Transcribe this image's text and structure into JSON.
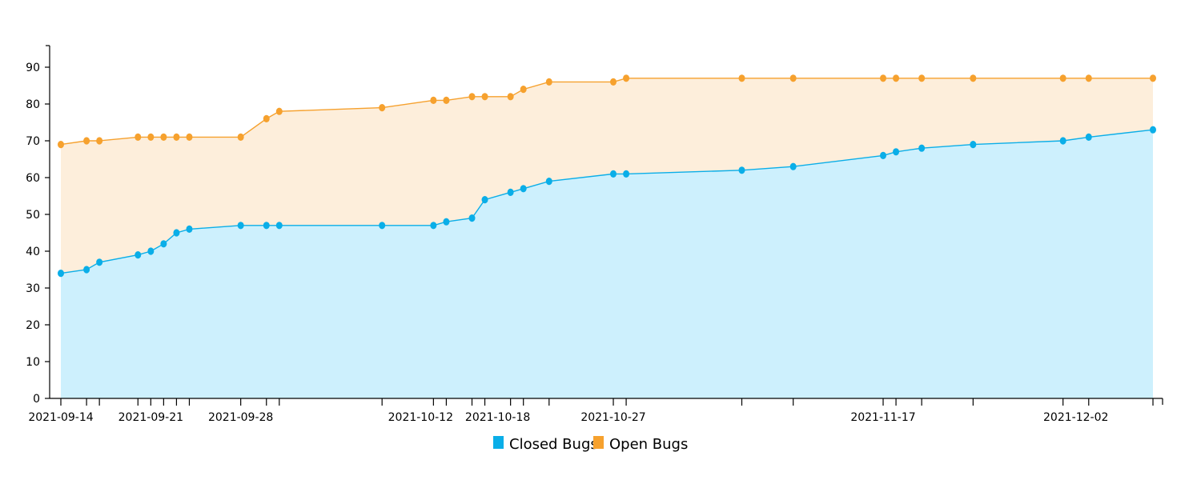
{
  "chart_data": {
    "type": "area",
    "dates": [
      "2021-09-14",
      "2021-09-16",
      "2021-09-17",
      "2021-09-20",
      "2021-09-21",
      "2021-09-22",
      "2021-09-23",
      "2021-09-24",
      "2021-09-28",
      "2021-09-30",
      "2021-10-01",
      "2021-10-09",
      "2021-10-13",
      "2021-10-14",
      "2021-10-16",
      "2021-10-17",
      "2021-10-19",
      "2021-10-20",
      "2021-10-22",
      "2021-10-27",
      "2021-10-28",
      "2021-11-06",
      "2021-11-10",
      "2021-11-17",
      "2021-11-18",
      "2021-11-20",
      "2021-11-24",
      "2021-12-01",
      "2021-12-03",
      "2021-12-08"
    ],
    "series": [
      {
        "name": "Closed Bugs",
        "color": "#0aaee8",
        "fill": "#cdf0fd",
        "values": [
          34,
          35,
          37,
          39,
          40,
          42,
          45,
          46,
          47,
          47,
          47,
          47,
          47,
          48,
          49,
          54,
          56,
          57,
          59,
          61,
          61,
          62,
          63,
          66,
          67,
          68,
          69,
          70,
          71,
          73
        ]
      },
      {
        "name": "Open Bugs",
        "color": "#f6a12e",
        "fill": "#fdeedb",
        "values": [
          69,
          70,
          70,
          71,
          71,
          71,
          71,
          71,
          71,
          76,
          78,
          79,
          81,
          81,
          82,
          82,
          82,
          84,
          86,
          86,
          87,
          87,
          87,
          87,
          87,
          87,
          87,
          87,
          87,
          87
        ]
      }
    ],
    "x_tick_labels": [
      "2021-09-14",
      "2021-09-21",
      "2021-09-28",
      "2021-10-12",
      "2021-10-18",
      "2021-10-27",
      "2021-11-17",
      "2021-12-02"
    ],
    "y_ticks": [
      0,
      10,
      20,
      30,
      40,
      50,
      60,
      70,
      80,
      90
    ],
    "ylim": [
      0,
      95
    ],
    "grid": false,
    "legend_position": "bottom-center"
  }
}
